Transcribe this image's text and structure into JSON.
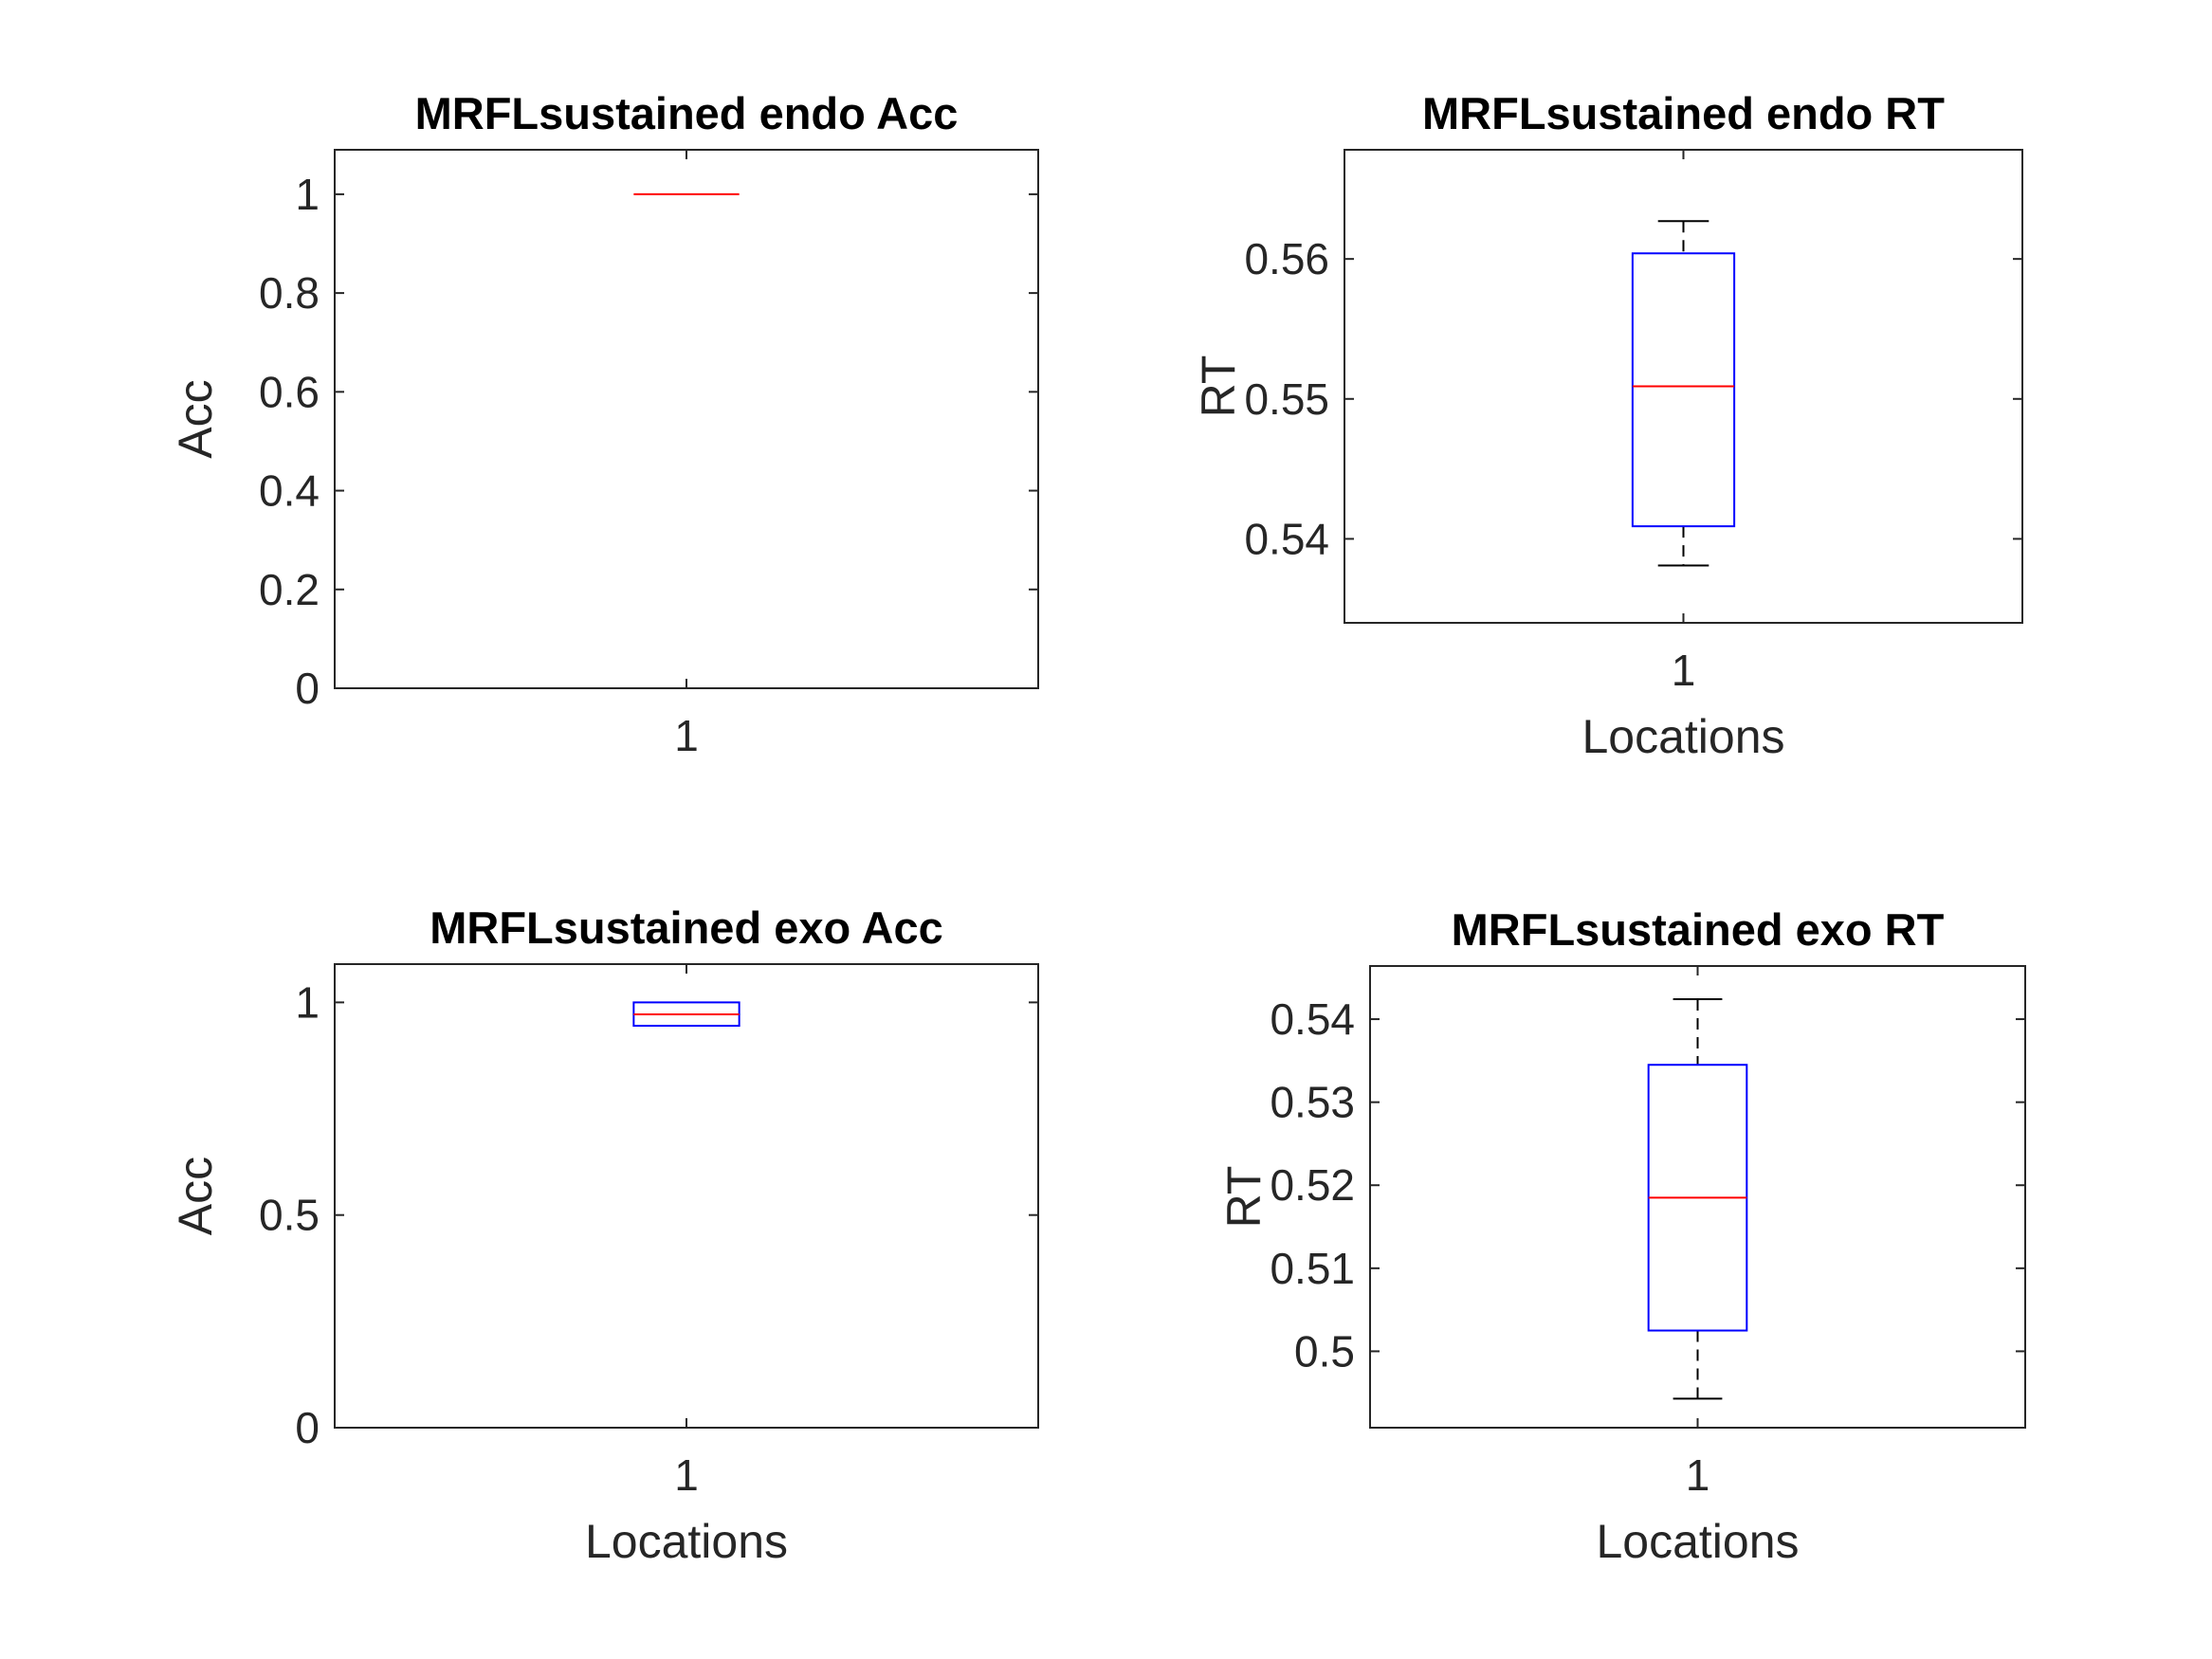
{
  "colors": {
    "box": "#0000ff",
    "median": "#ff0000",
    "whisker": "#000000",
    "axis": "#262626"
  },
  "chart_data": [
    {
      "type": "box",
      "title": "MRFLsustained endo Acc",
      "xlabel": "",
      "ylabel": "Acc",
      "categories": [
        "1"
      ],
      "ylim": [
        0,
        1.09
      ],
      "yticks": [
        0,
        0.2,
        0.4,
        0.6,
        0.8,
        1
      ],
      "ytick_labels": [
        "0",
        "0.2",
        "0.4",
        "0.6",
        "0.8",
        "1"
      ],
      "boxes": [
        {
          "q1": 1,
          "median": 1,
          "q3": 1,
          "whisker_low": 1,
          "whisker_high": 1
        }
      ]
    },
    {
      "type": "box",
      "title": "MRFLsustained endo RT",
      "xlabel": "Locations",
      "ylabel": "RT",
      "categories": [
        "1"
      ],
      "ylim": [
        0.534,
        0.5678
      ],
      "yticks": [
        0.54,
        0.55,
        0.56
      ],
      "ytick_labels": [
        "0.54",
        "0.55",
        "0.56"
      ],
      "boxes": [
        {
          "q1": 0.5409,
          "median": 0.5509,
          "q3": 0.5604,
          "whisker_low": 0.5381,
          "whisker_high": 0.5627
        }
      ]
    },
    {
      "type": "box",
      "title": "MRFLsustained exo Acc",
      "xlabel": "Locations",
      "ylabel": "Acc",
      "categories": [
        "1"
      ],
      "ylim": [
        0,
        1.09
      ],
      "yticks": [
        0,
        0.5,
        1
      ],
      "ytick_labels": [
        "0",
        "0.5",
        "1"
      ],
      "boxes": [
        {
          "q1": 0.945,
          "median": 0.972,
          "q3": 1,
          "whisker_low": 0.945,
          "whisker_high": 1
        }
      ]
    },
    {
      "type": "box",
      "title": "MRFLsustained exo RT",
      "xlabel": "Locations",
      "ylabel": "RT",
      "categories": [
        "1"
      ],
      "ylim": [
        0.4908,
        0.5464
      ],
      "yticks": [
        0.5,
        0.51,
        0.52,
        0.53,
        0.54
      ],
      "ytick_labels": [
        "0.5",
        "0.51",
        "0.52",
        "0.53",
        "0.54"
      ],
      "boxes": [
        {
          "q1": 0.5025,
          "median": 0.5185,
          "q3": 0.5345,
          "whisker_low": 0.4943,
          "whisker_high": 0.5424
        }
      ]
    }
  ]
}
